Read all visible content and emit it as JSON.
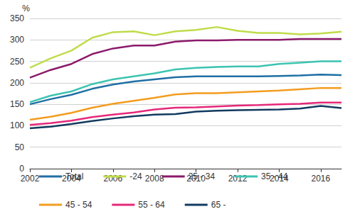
{
  "chart_data": {
    "type": "line",
    "y_label": "%",
    "x": [
      2002,
      2003,
      2004,
      2005,
      2006,
      2007,
      2008,
      2009,
      2010,
      2011,
      2012,
      2013,
      2014,
      2015,
      2016,
      2017
    ],
    "xlim": [
      2002,
      2017
    ],
    "xticks": [
      2002,
      2004,
      2006,
      2008,
      2010,
      2012,
      2014,
      2016
    ],
    "ylim": [
      0,
      350
    ],
    "yticks": [
      0,
      50,
      100,
      150,
      200,
      250,
      300,
      350
    ],
    "grid": true,
    "legend": "bottom",
    "series": [
      {
        "name": "Total",
        "color": "#1f6fa4",
        "values": [
          150,
          162,
          172,
          186,
          196,
          203,
          208,
          213,
          215,
          215,
          215,
          215,
          216,
          217,
          219,
          218
        ]
      },
      {
        "name": "-24",
        "color": "#bfdc4a",
        "values": [
          235,
          257,
          275,
          305,
          318,
          320,
          311,
          320,
          323,
          330,
          321,
          316,
          316,
          313,
          315,
          319
        ]
      },
      {
        "name": "25 - 34",
        "color": "#8b1a6b",
        "values": [
          212,
          230,
          244,
          267,
          280,
          287,
          287,
          296,
          299,
          299,
          300,
          300,
          300,
          302,
          302,
          302
        ]
      },
      {
        "name": "35 - 44",
        "color": "#3cc4b0",
        "values": [
          155,
          170,
          180,
          197,
          208,
          215,
          222,
          231,
          235,
          237,
          238,
          238,
          244,
          247,
          250,
          250
        ]
      },
      {
        "name": "45 - 54",
        "color": "#f39c1f",
        "values": [
          114,
          121,
          130,
          142,
          151,
          158,
          165,
          173,
          176,
          176,
          178,
          180,
          182,
          185,
          188,
          188
        ]
      },
      {
        "name": "55 - 64",
        "color": "#e6287a",
        "values": [
          102,
          106,
          112,
          120,
          126,
          131,
          138,
          142,
          143,
          145,
          147,
          148,
          150,
          151,
          154,
          154
        ]
      },
      {
        "name": "65 -",
        "color": "#123a5f",
        "values": [
          94,
          98,
          104,
          111,
          117,
          122,
          126,
          127,
          133,
          135,
          136,
          137,
          138,
          140,
          146,
          141
        ]
      }
    ]
  }
}
